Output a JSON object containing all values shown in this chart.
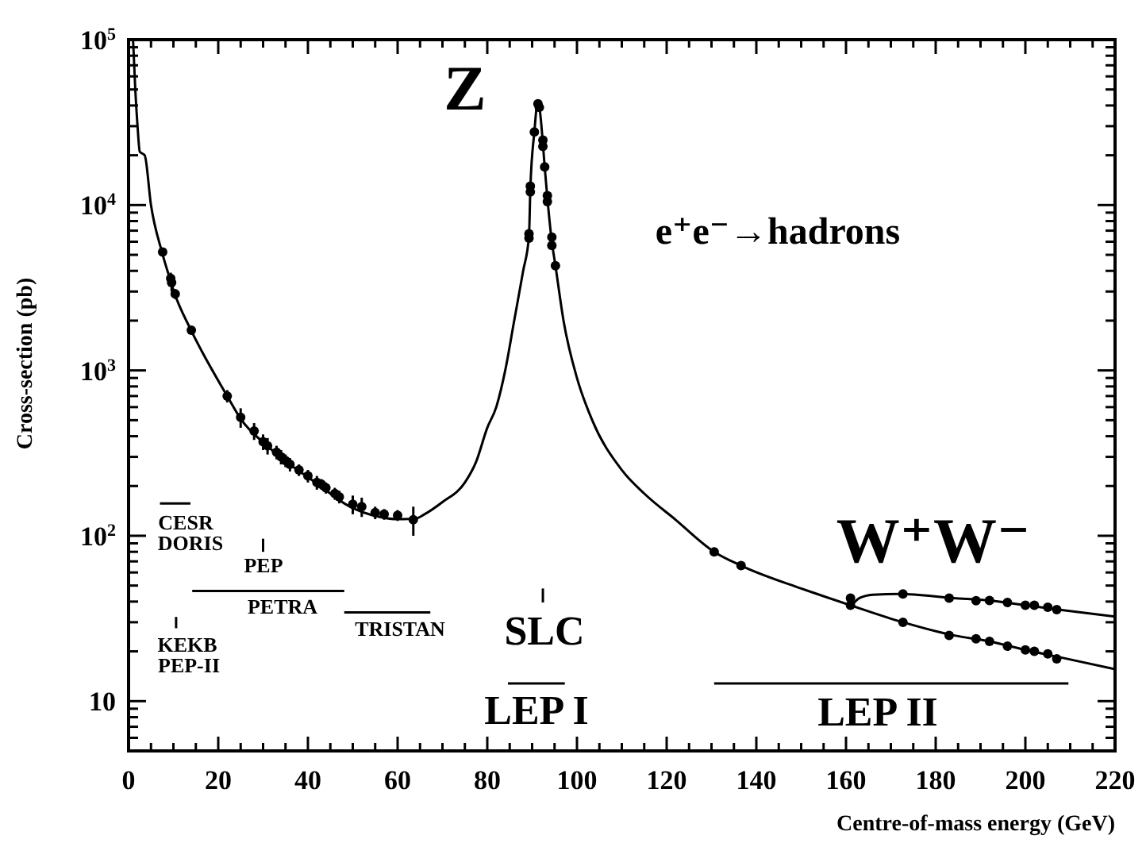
{
  "chart_data": {
    "type": "line",
    "xlabel": "Centre-of-mass energy (GeV)",
    "ylabel": "Cross-section (pb)",
    "log": "y",
    "grid": false,
    "xlim": [
      0,
      220
    ],
    "xticks": [
      0,
      {
        "value": 5,
        "label": null
      },
      {
        "value": 10,
        "label": null
      },
      {
        "value": 15,
        "label": null
      },
      20,
      {
        "value": 25,
        "label": null
      },
      {
        "value": 30,
        "label": null
      },
      {
        "value": 35,
        "label": null
      },
      40,
      {
        "value": 45,
        "label": null
      },
      {
        "value": 50,
        "label": null
      },
      {
        "value": 55,
        "label": null
      },
      60,
      {
        "value": 65,
        "label": null
      },
      {
        "value": 70,
        "label": null
      },
      {
        "value": 75,
        "label": null
      },
      80,
      {
        "value": 85,
        "label": null
      },
      {
        "value": 90,
        "label": null
      },
      {
        "value": 95,
        "label": null
      },
      100,
      {
        "value": 105,
        "label": null
      },
      {
        "value": 110,
        "label": null
      },
      {
        "value": 115,
        "label": null
      },
      120,
      {
        "value": 125,
        "label": null
      },
      {
        "value": 130,
        "label": null
      },
      {
        "value": 135,
        "label": null
      },
      140,
      {
        "value": 145,
        "label": null
      },
      {
        "value": 150,
        "label": null
      },
      {
        "value": 155,
        "label": null
      },
      160,
      {
        "value": 165,
        "label": null
      },
      {
        "value": 170,
        "label": null
      },
      {
        "value": 175,
        "label": null
      },
      180,
      {
        "value": 185,
        "label": null
      },
      {
        "value": 190,
        "label": null
      },
      {
        "value": 195,
        "label": null
      },
      200,
      {
        "value": 205,
        "label": null
      },
      {
        "value": 210,
        "label": null
      },
      {
        "value": 215,
        "label": null
      },
      220
    ],
    "ylim": [
      5,
      100000
    ],
    "yticks": [
      {
        "value": 6,
        "label": null
      },
      {
        "value": 7,
        "label": null
      },
      {
        "value": 8,
        "label": null
      },
      {
        "value": 9,
        "label": null
      },
      10,
      {
        "value": 20,
        "label": null
      },
      {
        "value": 30,
        "label": null
      },
      {
        "value": 40,
        "label": null
      },
      {
        "value": 50,
        "label": null
      },
      {
        "value": 60,
        "label": null
      },
      {
        "value": 70,
        "label": null
      },
      {
        "value": 80,
        "label": null
      },
      {
        "value": 90,
        "label": null
      },
      {
        "value": 100,
        "label": "10$^{2}$"
      },
      {
        "value": 200,
        "label": null
      },
      {
        "value": 300,
        "label": null
      },
      {
        "value": 400,
        "label": null
      },
      {
        "value": 500,
        "label": null
      },
      {
        "value": 600,
        "label": null
      },
      {
        "value": 700,
        "label": null
      },
      {
        "value": 800,
        "label": null
      },
      {
        "value": 900,
        "label": null
      },
      {
        "value": 1000,
        "label": "10$^{3}$"
      },
      {
        "value": 2000,
        "label": null
      },
      {
        "value": 3000,
        "label": null
      },
      {
        "value": 4000,
        "label": null
      },
      {
        "value": 5000,
        "label": null
      },
      {
        "value": 6000,
        "label": null
      },
      {
        "value": 7000,
        "label": null
      },
      {
        "value": 8000,
        "label": null
      },
      {
        "value": 9000,
        "label": null
      },
      {
        "value": 10000,
        "label": "10$^{4}$"
      },
      {
        "value": 20000,
        "label": null
      },
      {
        "value": 30000,
        "label": null
      },
      {
        "value": 40000,
        "label": null
      },
      {
        "value": 50000,
        "label": null
      },
      {
        "value": 60000,
        "label": null
      },
      {
        "value": 70000,
        "label": null
      },
      {
        "value": 80000,
        "label": null
      },
      {
        "value": 90000,
        "label": null
      },
      {
        "value": 100000,
        "label": "10$^{5}$"
      }
    ],
    "annotations": [
      "Z",
      "e⁺e⁻→hadrons",
      "W⁺W⁻",
      "CESR",
      "DORIS",
      "PEP",
      "PETRA",
      "TRISTAN",
      "KEKB",
      "PEP-II",
      "SLC",
      "LEP I",
      "LEP II"
    ],
    "series": [
      {
        "color": "#000000",
        "x": [
          1,
          1.5,
          2,
          2.5,
          3.6,
          5,
          7.4,
          9.2,
          10.3,
          13.8,
          22,
          25,
          30.8,
          35,
          42,
          49,
          56,
          60,
          64,
          66,
          70,
          75,
          77.5,
          80,
          82,
          84,
          86,
          88,
          89.3,
          89.6,
          90.5,
          91.2,
          91.6,
          92.4,
          92.8,
          93.4,
          94.4,
          95.2,
          97,
          100,
          103.4,
          110,
          115,
          122,
          130.6,
          136.6,
          150,
          161,
          172.7,
          184,
          192,
          200,
          207.4,
          220
        ],
        "values": [
          100000,
          50000,
          30000,
          21000,
          20000,
          10000,
          5250,
          3600,
          2900,
          1780,
          700,
          510,
          352,
          283,
          207,
          152,
          130,
          126,
          127,
          135,
          160,
          210,
          280,
          450,
          600,
          1000,
          2000,
          4000,
          6500,
          12500,
          27700,
          41000,
          39000,
          23500,
          17000,
          11000,
          6000,
          4300,
          2000,
          900,
          500,
          250,
          180,
          125,
          80,
          66,
          48,
          38,
          30,
          25,
          23,
          20.4,
          18.5,
          15.6
        ]
      },
      {
        "color": "#000000",
        "x": [
          161,
          163,
          166,
          172,
          184,
          192,
          200,
          207.4,
          220
        ],
        "values": [
          37,
          42,
          44,
          44.5,
          42,
          40.6,
          38,
          35.8,
          32.5
        ]
      },
      {
        "type": "scatter",
        "color": "#000000",
        "marker": "circle",
        "x": [
          7.6,
          9.4,
          9.6,
          10.4,
          14,
          22,
          25,
          28,
          30,
          31,
          33,
          34,
          35,
          36,
          38,
          40,
          42,
          43,
          44,
          46,
          47,
          50,
          52,
          55,
          57,
          60,
          63.5,
          89.3,
          89.3,
          89.6,
          89.6,
          90.5,
          91.3,
          91.6,
          92.4,
          92.4,
          92.8,
          93.4,
          93.4,
          94.4,
          94.4,
          95.2,
          130.6,
          136.6,
          161,
          172.7,
          183,
          189,
          192,
          196,
          200,
          202,
          205,
          207
        ],
        "values": [
          5200,
          3600,
          3400,
          2900,
          1750,
          700,
          520,
          430,
          370,
          350,
          320,
          300,
          285,
          270,
          250,
          230,
          210,
          205,
          195,
          180,
          172,
          155,
          150,
          138,
          135,
          133,
          125,
          6700,
          6300,
          13000,
          12000,
          27700,
          41000,
          39000,
          24700,
          22600,
          17000,
          11400,
          10500,
          6400,
          5700,
          4300,
          80,
          66,
          38,
          30,
          25,
          23.8,
          23,
          21.5,
          20.4,
          20,
          19.3,
          18
        ],
        "errors": [
          300,
          300,
          400,
          200,
          100,
          60,
          70,
          50,
          40,
          40,
          30,
          30,
          25,
          25,
          20,
          20,
          20,
          15,
          15,
          15,
          15,
          20,
          20,
          12,
          10,
          10,
          25,
          null,
          null,
          null,
          null,
          null,
          null,
          null,
          null,
          null,
          null,
          null,
          null,
          null,
          null,
          null,
          null,
          null,
          null,
          null,
          null,
          null,
          null,
          null,
          null,
          null,
          null,
          null
        ]
      },
      {
        "type": "scatter",
        "color": "#000000",
        "marker": "circle",
        "x": [
          161,
          172.7,
          183,
          189,
          192,
          196,
          200,
          202,
          205,
          207
        ],
        "values": [
          42,
          44.5,
          42,
          40.5,
          40.6,
          39.5,
          38,
          38,
          37,
          35.8
        ]
      },
      {
        "color": "#000000",
        "x": [
          7,
          13.8
        ],
        "values": [
          157,
          157
        ]
      },
      {
        "color": "#000000",
        "x": [
          30,
          30
        ],
        "values": [
          80,
          96
        ]
      },
      {
        "color": "#000000",
        "x": [
          14.2,
          48.1
        ],
        "values": [
          46.4,
          46.4
        ]
      },
      {
        "color": "#000000",
        "x": [
          48.1,
          67.3
        ],
        "values": [
          34.4,
          34.4
        ]
      },
      {
        "color": "#000000",
        "x": [
          10.6,
          10.6
        ],
        "values": [
          27.6,
          32.3
        ]
      },
      {
        "color": "#000000",
        "x": [
          92.4,
          92.4
        ],
        "values": [
          39.5,
          48
        ]
      },
      {
        "color": "#000000",
        "x": [
          84.6,
          97.3
        ],
        "values": [
          12.8,
          12.8
        ]
      },
      {
        "color": "#000000",
        "x": [
          130.6,
          209.6
        ],
        "values": [
          12.8,
          12.8
        ]
      }
    ]
  }
}
